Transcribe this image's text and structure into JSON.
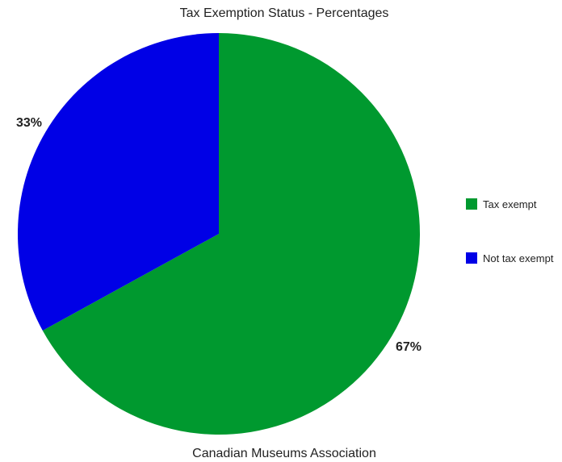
{
  "chart_data": {
    "type": "pie",
    "title": "Tax Exemption Status - Percentages",
    "subtitle": "Canadian Museums Association",
    "categories": [
      "Tax exempt",
      "Not tax exempt"
    ],
    "values": [
      67,
      33
    ],
    "value_labels": [
      "67%",
      "33%"
    ],
    "colors": [
      "#00992f",
      "#0000e6"
    ],
    "legend_position": "right",
    "start_angle": "top, clockwise"
  }
}
